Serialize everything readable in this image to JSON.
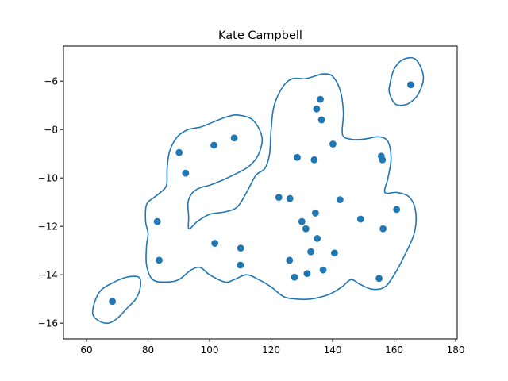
{
  "chart_data": {
    "type": "scatter",
    "title": "Kate Campbell",
    "xlabel": "",
    "ylabel": "",
    "xlim": [
      52.5,
      180.5
    ],
    "ylim": [
      -16.65,
      -4.55
    ],
    "xticks": [
      60,
      80,
      100,
      120,
      140,
      160,
      180
    ],
    "yticks": [
      -16,
      -14,
      -12,
      -10,
      -8,
      -6
    ],
    "grid": false,
    "point_color": "#1f77b4",
    "contour_color": "#1f77b4",
    "points": [
      {
        "x": 68.4,
        "y": -15.1
      },
      {
        "x": 83.0,
        "y": -11.8
      },
      {
        "x": 83.6,
        "y": -13.4
      },
      {
        "x": 90.1,
        "y": -8.95
      },
      {
        "x": 92.2,
        "y": -9.8
      },
      {
        "x": 101.4,
        "y": -8.65
      },
      {
        "x": 101.7,
        "y": -12.7
      },
      {
        "x": 108.0,
        "y": -8.35
      },
      {
        "x": 110.1,
        "y": -12.9
      },
      {
        "x": 110.0,
        "y": -13.6
      },
      {
        "x": 122.5,
        "y": -10.8
      },
      {
        "x": 126.1,
        "y": -10.85
      },
      {
        "x": 126.0,
        "y": -13.4
      },
      {
        "x": 127.6,
        "y": -14.1
      },
      {
        "x": 128.5,
        "y": -9.15
      },
      {
        "x": 130.0,
        "y": -11.8
      },
      {
        "x": 131.3,
        "y": -12.1
      },
      {
        "x": 131.7,
        "y": -13.95
      },
      {
        "x": 132.9,
        "y": -13.05
      },
      {
        "x": 134.0,
        "y": -9.25
      },
      {
        "x": 134.4,
        "y": -11.45
      },
      {
        "x": 134.8,
        "y": -7.15
      },
      {
        "x": 135.0,
        "y": -12.5
      },
      {
        "x": 136.0,
        "y": -6.75
      },
      {
        "x": 136.4,
        "y": -7.6
      },
      {
        "x": 136.9,
        "y": -13.8
      },
      {
        "x": 140.1,
        "y": -8.6
      },
      {
        "x": 140.6,
        "y": -13.1
      },
      {
        "x": 142.4,
        "y": -10.9
      },
      {
        "x": 149.1,
        "y": -11.7
      },
      {
        "x": 155.1,
        "y": -14.15
      },
      {
        "x": 155.8,
        "y": -9.1
      },
      {
        "x": 156.2,
        "y": -9.25
      },
      {
        "x": 156.4,
        "y": -12.1
      },
      {
        "x": 160.8,
        "y": -11.3
      },
      {
        "x": 165.4,
        "y": -6.15
      }
    ],
    "contours": [
      {
        "name": "main",
        "points": [
          [
            89.5,
            -8.3
          ],
          [
            93,
            -8.0
          ],
          [
            97,
            -7.9
          ],
          [
            101,
            -7.7
          ],
          [
            105,
            -7.5
          ],
          [
            109,
            -7.4
          ],
          [
            114,
            -7.6
          ],
          [
            117,
            -8.3
          ],
          [
            116,
            -9.0
          ],
          [
            113,
            -9.5
          ],
          [
            109,
            -9.8
          ],
          [
            104,
            -10.1
          ],
          [
            100,
            -10.3
          ],
          [
            97,
            -10.4
          ],
          [
            94.5,
            -10.6
          ],
          [
            93,
            -11.0
          ],
          [
            93.2,
            -11.6
          ],
          [
            93.3,
            -12.1
          ],
          [
            96,
            -11.8
          ],
          [
            100,
            -11.5
          ],
          [
            105,
            -11.4
          ],
          [
            109,
            -11.2
          ],
          [
            112,
            -10.6
          ],
          [
            115,
            -9.9
          ],
          [
            118,
            -9.6
          ],
          [
            119.5,
            -9.0
          ],
          [
            120,
            -8.0
          ],
          [
            121,
            -7.0
          ],
          [
            124,
            -6.2
          ],
          [
            127,
            -5.9
          ],
          [
            131,
            -5.9
          ],
          [
            134,
            -5.8
          ],
          [
            137,
            -5.7
          ],
          [
            140,
            -5.8
          ],
          [
            142.5,
            -6.4
          ],
          [
            143.5,
            -7.3
          ],
          [
            143.2,
            -8.2
          ],
          [
            146,
            -8.4
          ],
          [
            150,
            -8.4
          ],
          [
            155,
            -8.3
          ],
          [
            158,
            -8.5
          ],
          [
            159,
            -9.2
          ],
          [
            158,
            -10.0
          ],
          [
            157,
            -10.6
          ],
          [
            161,
            -10.6
          ],
          [
            165,
            -10.8
          ],
          [
            167,
            -11.4
          ],
          [
            166.5,
            -12.3
          ],
          [
            163,
            -13.3
          ],
          [
            160,
            -14.0
          ],
          [
            157,
            -14.5
          ],
          [
            153,
            -14.6
          ],
          [
            149,
            -14.4
          ],
          [
            146,
            -14.2
          ],
          [
            143,
            -14.5
          ],
          [
            139,
            -14.8
          ],
          [
            133,
            -15.0
          ],
          [
            128,
            -15.0
          ],
          [
            124,
            -14.9
          ],
          [
            120,
            -14.5
          ],
          [
            116,
            -14.2
          ],
          [
            112,
            -14.0
          ],
          [
            108,
            -14.2
          ],
          [
            105,
            -14.3
          ],
          [
            100,
            -14.0
          ],
          [
            97,
            -13.7
          ],
          [
            94,
            -13.8
          ],
          [
            90,
            -14.2
          ],
          [
            86,
            -14.3
          ],
          [
            81.5,
            -14.2
          ],
          [
            79.5,
            -13.6
          ],
          [
            79.5,
            -12.8
          ],
          [
            80,
            -12.3
          ],
          [
            79.2,
            -11.8
          ],
          [
            79.5,
            -11.1
          ],
          [
            82,
            -10.8
          ],
          [
            84,
            -10.6
          ],
          [
            86,
            -10.3
          ],
          [
            86.2,
            -9.6
          ],
          [
            87,
            -8.9
          ],
          [
            89.5,
            -8.3
          ]
        ]
      },
      {
        "name": "lower-left",
        "points": [
          [
            62,
            -15.6
          ],
          [
            64,
            -15.9
          ],
          [
            67,
            -16.0
          ],
          [
            70,
            -15.8
          ],
          [
            73,
            -15.4
          ],
          [
            76,
            -15.0
          ],
          [
            77.5,
            -14.5
          ],
          [
            77,
            -14.1
          ],
          [
            73,
            -14.1
          ],
          [
            69,
            -14.3
          ],
          [
            65,
            -14.6
          ],
          [
            63,
            -15.0
          ],
          [
            62,
            -15.6
          ]
        ]
      },
      {
        "name": "upper-right",
        "points": [
          [
            158.5,
            -6.2
          ],
          [
            160,
            -5.5
          ],
          [
            163,
            -5.1
          ],
          [
            167,
            -5.1
          ],
          [
            169.5,
            -5.8
          ],
          [
            168,
            -6.5
          ],
          [
            165,
            -6.9
          ],
          [
            162,
            -7.0
          ],
          [
            160,
            -6.9
          ],
          [
            158.5,
            -6.5
          ],
          [
            158.5,
            -6.2
          ]
        ]
      }
    ]
  }
}
